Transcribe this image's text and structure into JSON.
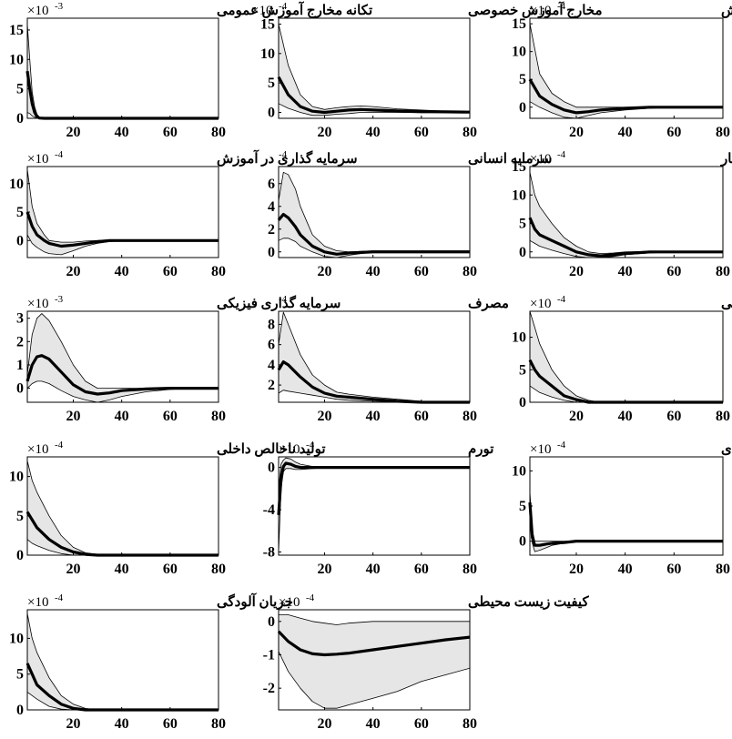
{
  "figure": {
    "background": "#ffffff",
    "band_color": "#e6e6e6",
    "band_edge_color": "#000000",
    "median_color": "#000000"
  },
  "chart_data": [
    {
      "type": "area",
      "title": "تکانه مخارج آموزش عمومی",
      "multiplier": "×10",
      "exponent": "-3",
      "xlim": [
        1,
        80
      ],
      "ylim": [
        0,
        17
      ],
      "xticks": [
        "20",
        "40",
        "60",
        "80"
      ],
      "yticks": [
        0,
        5,
        10,
        15
      ],
      "x": [
        1,
        2,
        3,
        4,
        5,
        6,
        8,
        10,
        15,
        20,
        40,
        60,
        80
      ],
      "median": [
        8,
        5,
        2.5,
        1,
        0.3,
        0.05,
        0,
        0,
        0,
        0,
        0,
        0,
        0
      ],
      "upper": [
        16,
        10,
        4.5,
        2,
        0.7,
        0.2,
        0,
        0,
        0,
        0,
        0,
        0,
        0
      ],
      "lower": [
        1,
        0.8,
        0.4,
        0.2,
        0.05,
        0,
        0,
        0,
        0,
        0,
        0,
        0,
        0
      ]
    },
    {
      "type": "area",
      "title": "مخارج آموزش خصوصی",
      "multiplier": "×10",
      "exponent": "-4",
      "xlim": [
        1,
        80
      ],
      "ylim": [
        -1,
        16
      ],
      "xticks": [
        "20",
        "40",
        "60",
        "80"
      ],
      "yticks": [
        0,
        5,
        10,
        15
      ],
      "x": [
        1,
        5,
        10,
        15,
        20,
        25,
        30,
        35,
        40,
        50,
        60,
        70,
        80
      ],
      "median": [
        6,
        3,
        1,
        0.2,
        0,
        0.2,
        0.4,
        0.5,
        0.4,
        0.25,
        0.15,
        0.1,
        0.05
      ],
      "upper": [
        15,
        8,
        3,
        1,
        0.5,
        0.8,
        1,
        1.1,
        1,
        0.6,
        0.4,
        0.2,
        0.1
      ],
      "lower": [
        1.5,
        0.7,
        0,
        -0.5,
        -0.5,
        -0.3,
        -0.2,
        0,
        0,
        0,
        -0.05,
        0,
        0
      ]
    },
    {
      "type": "area",
      "title": "ساعات آموزش",
      "multiplier": "×10",
      "exponent": "-4",
      "xlim": [
        1,
        80
      ],
      "ylim": [
        -2,
        16
      ],
      "xticks": [
        "20",
        "40",
        "60",
        "80"
      ],
      "yticks": [
        0,
        5,
        10,
        15
      ],
      "x": [
        1,
        5,
        10,
        15,
        20,
        25,
        30,
        40,
        50,
        60,
        70,
        80
      ],
      "median": [
        5,
        2,
        0.5,
        -0.5,
        -1,
        -0.8,
        -0.5,
        -0.2,
        0,
        0,
        0,
        0
      ],
      "upper": [
        15,
        6,
        2.5,
        1,
        0,
        0,
        0,
        0,
        0,
        0,
        0,
        0
      ],
      "lower": [
        1,
        0,
        -1,
        -1.8,
        -2,
        -1.5,
        -1,
        -0.5,
        -0.2,
        0,
        0,
        0
      ]
    },
    {
      "type": "area",
      "title": "سرمایه گذاری در آموزش",
      "multiplier": "×10",
      "exponent": "-4",
      "xlim": [
        1,
        80
      ],
      "ylim": [
        -3,
        13
      ],
      "xticks": [
        "20",
        "40",
        "60",
        "80"
      ],
      "yticks": [
        0,
        5,
        10
      ],
      "x": [
        1,
        3,
        5,
        8,
        10,
        15,
        20,
        25,
        30,
        35,
        40,
        50,
        60,
        80
      ],
      "median": [
        5,
        2.5,
        1,
        0,
        -0.5,
        -1,
        -0.8,
        -0.5,
        -0.2,
        0,
        0,
        0,
        0,
        0
      ],
      "upper": [
        12.5,
        6,
        3,
        1,
        0,
        -0.3,
        -0.3,
        -0.1,
        0,
        0.1,
        0.1,
        0,
        0,
        0
      ],
      "lower": [
        1,
        -0.5,
        -1.2,
        -2,
        -2.3,
        -2.5,
        -1.8,
        -1,
        -0.5,
        -0.2,
        0,
        0,
        0,
        0
      ]
    },
    {
      "type": "area",
      "title": "سرمایه انسانی",
      "multiplier": "",
      "exponent": "-4",
      "xlim": [
        1,
        80
      ],
      "ylim": [
        -0.5,
        7.5
      ],
      "xticks": [
        "20",
        "40",
        "60",
        "80"
      ],
      "yticks": [
        0,
        2,
        4,
        6
      ],
      "x": [
        1,
        3,
        5,
        8,
        10,
        15,
        20,
        25,
        30,
        40,
        60,
        80
      ],
      "median": [
        2.8,
        3.3,
        3,
        2.2,
        1.5,
        0.5,
        0,
        -0.2,
        -0.1,
        0,
        0,
        0
      ],
      "upper": [
        4.5,
        7,
        6.8,
        5.5,
        4,
        1.5,
        0.5,
        0.1,
        0,
        0.1,
        0.1,
        0.1
      ],
      "lower": [
        1,
        1.2,
        1.2,
        0.9,
        0.5,
        0,
        -0.4,
        -0.5,
        -0.3,
        0,
        0,
        0
      ]
    },
    {
      "type": "area",
      "title": "ساعات کار",
      "multiplier": "×10",
      "exponent": "-4",
      "xlim": [
        1,
        80
      ],
      "ylim": [
        -1,
        15
      ],
      "xticks": [
        "20",
        "40",
        "60",
        "80"
      ],
      "yticks": [
        0,
        5,
        10,
        15
      ],
      "x": [
        1,
        3,
        5,
        10,
        15,
        20,
        25,
        30,
        35,
        40,
        50,
        60,
        80
      ],
      "median": [
        6,
        4,
        3,
        2,
        1,
        0,
        -0.5,
        -0.7,
        -0.5,
        -0.3,
        0,
        0,
        0
      ],
      "upper": [
        14,
        10,
        8,
        5,
        2.5,
        1,
        0,
        -0.3,
        -0.2,
        0,
        0.1,
        0.1,
        0
      ],
      "lower": [
        2,
        1.5,
        1,
        0.3,
        -0.3,
        -0.8,
        -1,
        -1,
        -0.8,
        -0.5,
        -0.2,
        0,
        0
      ]
    },
    {
      "type": "area",
      "title": "سرمایه گذاری فیزیکی",
      "multiplier": "×10",
      "exponent": "-3",
      "xlim": [
        1,
        80
      ],
      "ylim": [
        -0.6,
        3.3
      ],
      "xticks": [
        "20",
        "40",
        "60",
        "80"
      ],
      "yticks": [
        0,
        1,
        2,
        3
      ],
      "x": [
        1,
        3,
        5,
        7,
        10,
        15,
        20,
        25,
        30,
        35,
        40,
        50,
        60,
        70,
        80
      ],
      "median": [
        0.3,
        1,
        1.35,
        1.4,
        1.25,
        0.7,
        0.15,
        -0.15,
        -0.25,
        -0.2,
        -0.1,
        -0.03,
        0,
        0,
        0
      ],
      "upper": [
        0.6,
        2.3,
        3,
        3.2,
        2.9,
        2,
        1,
        0.3,
        0,
        0,
        0,
        0,
        0,
        0,
        0
      ],
      "lower": [
        0,
        0.2,
        0.3,
        0.3,
        0.2,
        -0.1,
        -0.35,
        -0.5,
        -0.6,
        -0.5,
        -0.35,
        -0.15,
        -0.05,
        0,
        0
      ]
    },
    {
      "type": "area",
      "title": "مصرف",
      "multiplier": "",
      "exponent": "-4",
      "xlim": [
        1,
        80
      ],
      "ylim": [
        0.3,
        9.3
      ],
      "xticks": [
        "20",
        "40",
        "60",
        "80"
      ],
      "yticks": [
        2,
        4,
        6,
        8
      ],
      "x": [
        1,
        3,
        5,
        10,
        15,
        20,
        25,
        30,
        40,
        50,
        60,
        70,
        80
      ],
      "median": [
        3.5,
        4.3,
        4,
        2.8,
        1.8,
        1.2,
        0.9,
        0.8,
        0.6,
        0.4,
        0.3,
        0.3,
        0.3
      ],
      "upper": [
        6,
        9.2,
        8,
        5,
        3,
        2,
        1.3,
        1.1,
        0.8,
        0.6,
        0.4,
        0.3,
        0.3
      ],
      "lower": [
        1.2,
        1.5,
        1.4,
        1.2,
        1,
        0.8,
        0.6,
        0.5,
        0.4,
        0.35,
        0.3,
        0.3,
        0.3
      ]
    },
    {
      "type": "area",
      "title": "تولید غیرنفتی",
      "multiplier": "×10",
      "exponent": "-4",
      "xlim": [
        1,
        80
      ],
      "ylim": [
        0,
        14
      ],
      "xticks": [
        "20",
        "40",
        "60",
        "80"
      ],
      "yticks": [
        0,
        5,
        10
      ],
      "x": [
        1,
        3,
        5,
        10,
        15,
        20,
        25,
        30,
        40,
        60,
        80
      ],
      "median": [
        6.5,
        5,
        4,
        2.5,
        1,
        0.4,
        0,
        0,
        0,
        0,
        0
      ],
      "upper": [
        14,
        11.5,
        9,
        5,
        2.5,
        1,
        0.3,
        0,
        0,
        0,
        0
      ],
      "lower": [
        2.5,
        2,
        1.5,
        0.8,
        0.3,
        0,
        0,
        0,
        0,
        0,
        0
      ]
    },
    {
      "type": "area",
      "title": "تولید ناخالص داخلی",
      "multiplier": "×10",
      "exponent": "-4",
      "xlim": [
        1,
        80
      ],
      "ylim": [
        0,
        12.5
      ],
      "xticks": [
        "20",
        "40",
        "60",
        "80"
      ],
      "yticks": [
        0,
        5,
        10
      ],
      "x": [
        1,
        3,
        5,
        10,
        15,
        20,
        25,
        30,
        40,
        60,
        80
      ],
      "median": [
        5.5,
        4.5,
        3.5,
        2,
        1,
        0.4,
        0.1,
        0,
        0,
        0,
        0
      ],
      "upper": [
        12,
        9.5,
        8,
        5,
        2.5,
        1,
        0.3,
        0.1,
        0,
        0,
        0
      ],
      "lower": [
        2,
        1.5,
        1.2,
        0.6,
        0.2,
        0,
        0,
        0,
        0,
        0,
        0
      ]
    },
    {
      "type": "area",
      "title": "تورم",
      "multiplier": "×10",
      "exponent": "-4",
      "xlim": [
        1,
        80
      ],
      "ylim": [
        -8.3,
        1
      ],
      "xticks": [
        "20",
        "40",
        "60",
        "80"
      ],
      "yticks": [
        0,
        -4,
        -8
      ],
      "x": [
        1,
        2,
        3,
        4,
        6,
        8,
        10,
        15,
        20,
        30,
        40,
        60,
        80
      ],
      "median": [
        -4.5,
        -1,
        0.1,
        0.4,
        0.3,
        0.1,
        0,
        0,
        0,
        0,
        0,
        0,
        0
      ],
      "upper": [
        -2,
        0.3,
        0.7,
        0.9,
        0.8,
        0.5,
        0.3,
        0.1,
        0.05,
        0,
        0,
        0,
        0
      ],
      "lower": [
        -8,
        -2,
        -0.4,
        -0.1,
        -0.1,
        -0.2,
        -0.2,
        -0.1,
        -0.05,
        0,
        0,
        0,
        0
      ]
    },
    {
      "type": "area",
      "title": "رشد اقتصادی",
      "multiplier": "×10",
      "exponent": "-4",
      "xlim": [
        1,
        80
      ],
      "ylim": [
        -2,
        12
      ],
      "xticks": [
        "20",
        "40",
        "60",
        "80"
      ],
      "yticks": [
        0,
        5,
        10
      ],
      "x": [
        1,
        2,
        3,
        5,
        8,
        10,
        15,
        20,
        30,
        40,
        60,
        80
      ],
      "median": [
        5.5,
        0.5,
        -0.6,
        -0.6,
        -0.4,
        -0.3,
        -0.2,
        0,
        0,
        0,
        0,
        0
      ],
      "upper": [
        7,
        1.5,
        0,
        0,
        0,
        0,
        0,
        0,
        0,
        0,
        0,
        0
      ],
      "lower": [
        3.5,
        -0.3,
        -1.5,
        -1.3,
        -0.9,
        -0.6,
        -0.3,
        -0.1,
        0,
        0,
        0,
        0
      ]
    },
    {
      "type": "area",
      "title": "جریان آلودگی",
      "multiplier": "×10",
      "exponent": "-4",
      "xlim": [
        1,
        80
      ],
      "ylim": [
        0,
        14
      ],
      "xticks": [
        "20",
        "40",
        "60",
        "80"
      ],
      "yticks": [
        0,
        5,
        10
      ],
      "x": [
        1,
        3,
        5,
        10,
        15,
        20,
        25,
        30,
        40,
        60,
        80
      ],
      "median": [
        6.5,
        5,
        3.5,
        2,
        0.8,
        0.2,
        0,
        0,
        0,
        0,
        0
      ],
      "upper": [
        13.5,
        10,
        8,
        4.5,
        2,
        0.8,
        0.2,
        0,
        0,
        0,
        0
      ],
      "lower": [
        2.5,
        2,
        1.5,
        0.5,
        0.1,
        0,
        0,
        0,
        0,
        0,
        0
      ]
    },
    {
      "type": "area",
      "title": "کیفیت زیست محیطی",
      "multiplier": "×10",
      "exponent": "-4",
      "xlim": [
        1,
        80
      ],
      "ylim": [
        -2.65,
        0.35
      ],
      "xticks": [
        "20",
        "40",
        "60",
        "80"
      ],
      "yticks": [
        0,
        -1,
        -2
      ],
      "x": [
        1,
        5,
        10,
        15,
        20,
        25,
        30,
        40,
        50,
        60,
        70,
        80
      ],
      "median": [
        -0.3,
        -0.6,
        -0.85,
        -0.97,
        -1,
        -0.98,
        -0.95,
        -0.85,
        -0.75,
        -0.65,
        -0.55,
        -0.47
      ],
      "upper": [
        0.2,
        0.2,
        0.1,
        0,
        -0.05,
        -0.1,
        -0.05,
        0,
        0,
        0,
        0,
        0
      ],
      "lower": [
        -0.9,
        -1.5,
        -2,
        -2.4,
        -2.6,
        -2.6,
        -2.5,
        -2.3,
        -2.1,
        -1.8,
        -1.6,
        -1.4
      ]
    }
  ]
}
